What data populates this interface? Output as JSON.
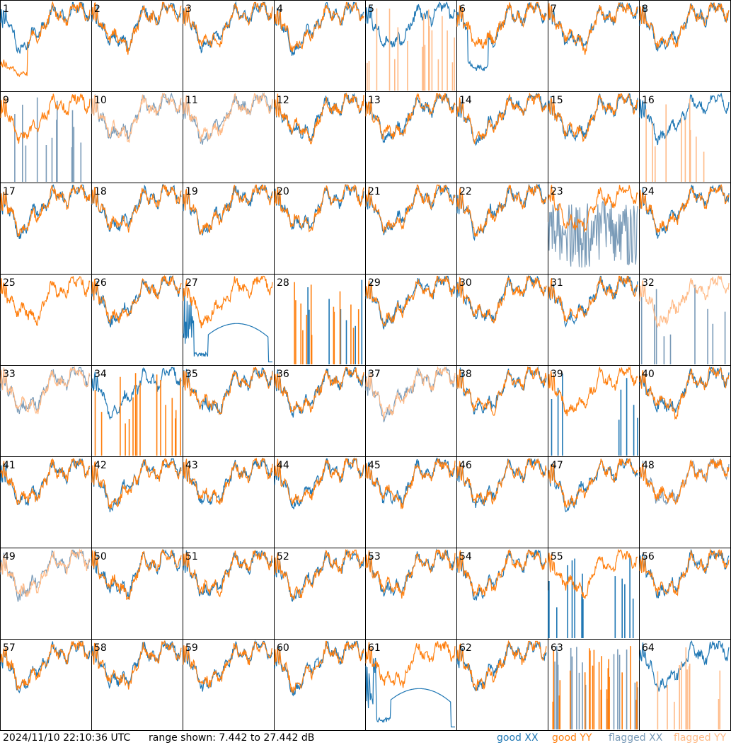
{
  "chart_data": {
    "type": "line",
    "panel_count": 64,
    "panels": [
      {
        "label": "1",
        "xx": "good",
        "yy": "good",
        "yy_low": true
      },
      {
        "label": "2",
        "xx": "good",
        "yy": "good"
      },
      {
        "label": "3",
        "xx": "good",
        "yy": "good"
      },
      {
        "label": "4",
        "xx": "good",
        "yy": "good"
      },
      {
        "label": "5",
        "xx": "good",
        "yy": "flagged_spikes"
      },
      {
        "label": "6",
        "xx": "good_low",
        "yy": "good"
      },
      {
        "label": "7",
        "xx": "good",
        "yy": "good"
      },
      {
        "label": "8",
        "xx": "good",
        "yy": "good"
      },
      {
        "label": "9",
        "xx": "flagged_spikes",
        "yy": "good"
      },
      {
        "label": "10",
        "xx": "flagged",
        "yy": "flagged"
      },
      {
        "label": "11",
        "xx": "flagged",
        "yy": "flagged"
      },
      {
        "label": "12",
        "xx": "good",
        "yy": "good"
      },
      {
        "label": "13",
        "xx": "good",
        "yy": "good"
      },
      {
        "label": "14",
        "xx": "good",
        "yy": "good"
      },
      {
        "label": "15",
        "xx": "good",
        "yy": "good"
      },
      {
        "label": "16",
        "xx": "good",
        "yy": "flagged_spikes"
      },
      {
        "label": "17",
        "xx": "good",
        "yy": "good"
      },
      {
        "label": "18",
        "xx": "good",
        "yy": "good"
      },
      {
        "label": "19",
        "xx": "good",
        "yy": "good"
      },
      {
        "label": "20",
        "xx": "good",
        "yy": "good"
      },
      {
        "label": "21",
        "xx": "good",
        "yy": "good"
      },
      {
        "label": "22",
        "xx": "good",
        "yy": "good"
      },
      {
        "label": "23",
        "xx": "flagged_noisy",
        "yy": "good"
      },
      {
        "label": "24",
        "xx": "good",
        "yy": "good"
      },
      {
        "label": "25",
        "xx": "good_spike",
        "yy": "good"
      },
      {
        "label": "26",
        "xx": "good",
        "yy": "good"
      },
      {
        "label": "27",
        "xx": "good_arc",
        "yy": "good"
      },
      {
        "label": "28",
        "xx": "good_spikes",
        "yy": "good_spikes"
      },
      {
        "label": "29",
        "xx": "good",
        "yy": "good"
      },
      {
        "label": "30",
        "xx": "good",
        "yy": "good"
      },
      {
        "label": "31",
        "xx": "good",
        "yy": "good"
      },
      {
        "label": "32",
        "xx": "flagged_spikes",
        "yy": "flagged"
      },
      {
        "label": "33",
        "xx": "flagged",
        "yy": "flagged"
      },
      {
        "label": "34",
        "xx": "good",
        "yy": "good_spikes"
      },
      {
        "label": "35",
        "xx": "good",
        "yy": "good"
      },
      {
        "label": "36",
        "xx": "good",
        "yy": "good"
      },
      {
        "label": "37",
        "xx": "flagged",
        "yy": "flagged"
      },
      {
        "label": "38",
        "xx": "good",
        "yy": "good"
      },
      {
        "label": "39",
        "xx": "good_spikes",
        "yy": "good"
      },
      {
        "label": "40",
        "xx": "good",
        "yy": "good"
      },
      {
        "label": "41",
        "xx": "good",
        "yy": "good"
      },
      {
        "label": "42",
        "xx": "good",
        "yy": "good"
      },
      {
        "label": "43",
        "xx": "good",
        "yy": "good"
      },
      {
        "label": "44",
        "xx": "good",
        "yy": "good"
      },
      {
        "label": "45",
        "xx": "good",
        "yy": "good"
      },
      {
        "label": "46",
        "xx": "good",
        "yy": "good"
      },
      {
        "label": "47",
        "xx": "good",
        "yy": "good"
      },
      {
        "label": "48",
        "xx": "flagged",
        "yy": "good"
      },
      {
        "label": "49",
        "xx": "flagged",
        "yy": "flagged"
      },
      {
        "label": "50",
        "xx": "good",
        "yy": "good"
      },
      {
        "label": "51",
        "xx": "good",
        "yy": "good"
      },
      {
        "label": "52",
        "xx": "good",
        "yy": "good"
      },
      {
        "label": "53",
        "xx": "good",
        "yy": "good"
      },
      {
        "label": "54",
        "xx": "good",
        "yy": "good"
      },
      {
        "label": "55",
        "xx": "good_spikes",
        "yy": "good"
      },
      {
        "label": "56",
        "xx": "good",
        "yy": "good"
      },
      {
        "label": "57",
        "xx": "good",
        "yy": "good"
      },
      {
        "label": "58",
        "xx": "good",
        "yy": "good"
      },
      {
        "label": "59",
        "xx": "good",
        "yy": "good"
      },
      {
        "label": "60",
        "xx": "good",
        "yy": "good"
      },
      {
        "label": "61",
        "xx": "good_arc",
        "yy": "good"
      },
      {
        "label": "62",
        "xx": "good",
        "yy": "good"
      },
      {
        "label": "63",
        "xx": "flagged_spikes",
        "yy": "good_spikes"
      },
      {
        "label": "64",
        "xx": "good",
        "yy": "flagged_spikes"
      }
    ],
    "y_range_db": [
      7.442,
      27.442
    ],
    "legend": {
      "placement": "bottom-right",
      "entries": [
        "good XX",
        "good YY",
        "flagged XX",
        "flagged YY"
      ]
    },
    "colors": {
      "good_xx": "#1f77b4",
      "good_yy": "#ff7f0e",
      "flagged_xx": "#7a9bb8",
      "flagged_yy": "#ffbb88"
    },
    "grid": false
  },
  "footer": {
    "timestamp": "2024/11/10 22:10:36 UTC",
    "range_text": "range shown: 7.442 to 27.442 dB",
    "legend_labels": [
      "good XX",
      "good YY",
      "flagged XX",
      "flagged YY"
    ]
  }
}
